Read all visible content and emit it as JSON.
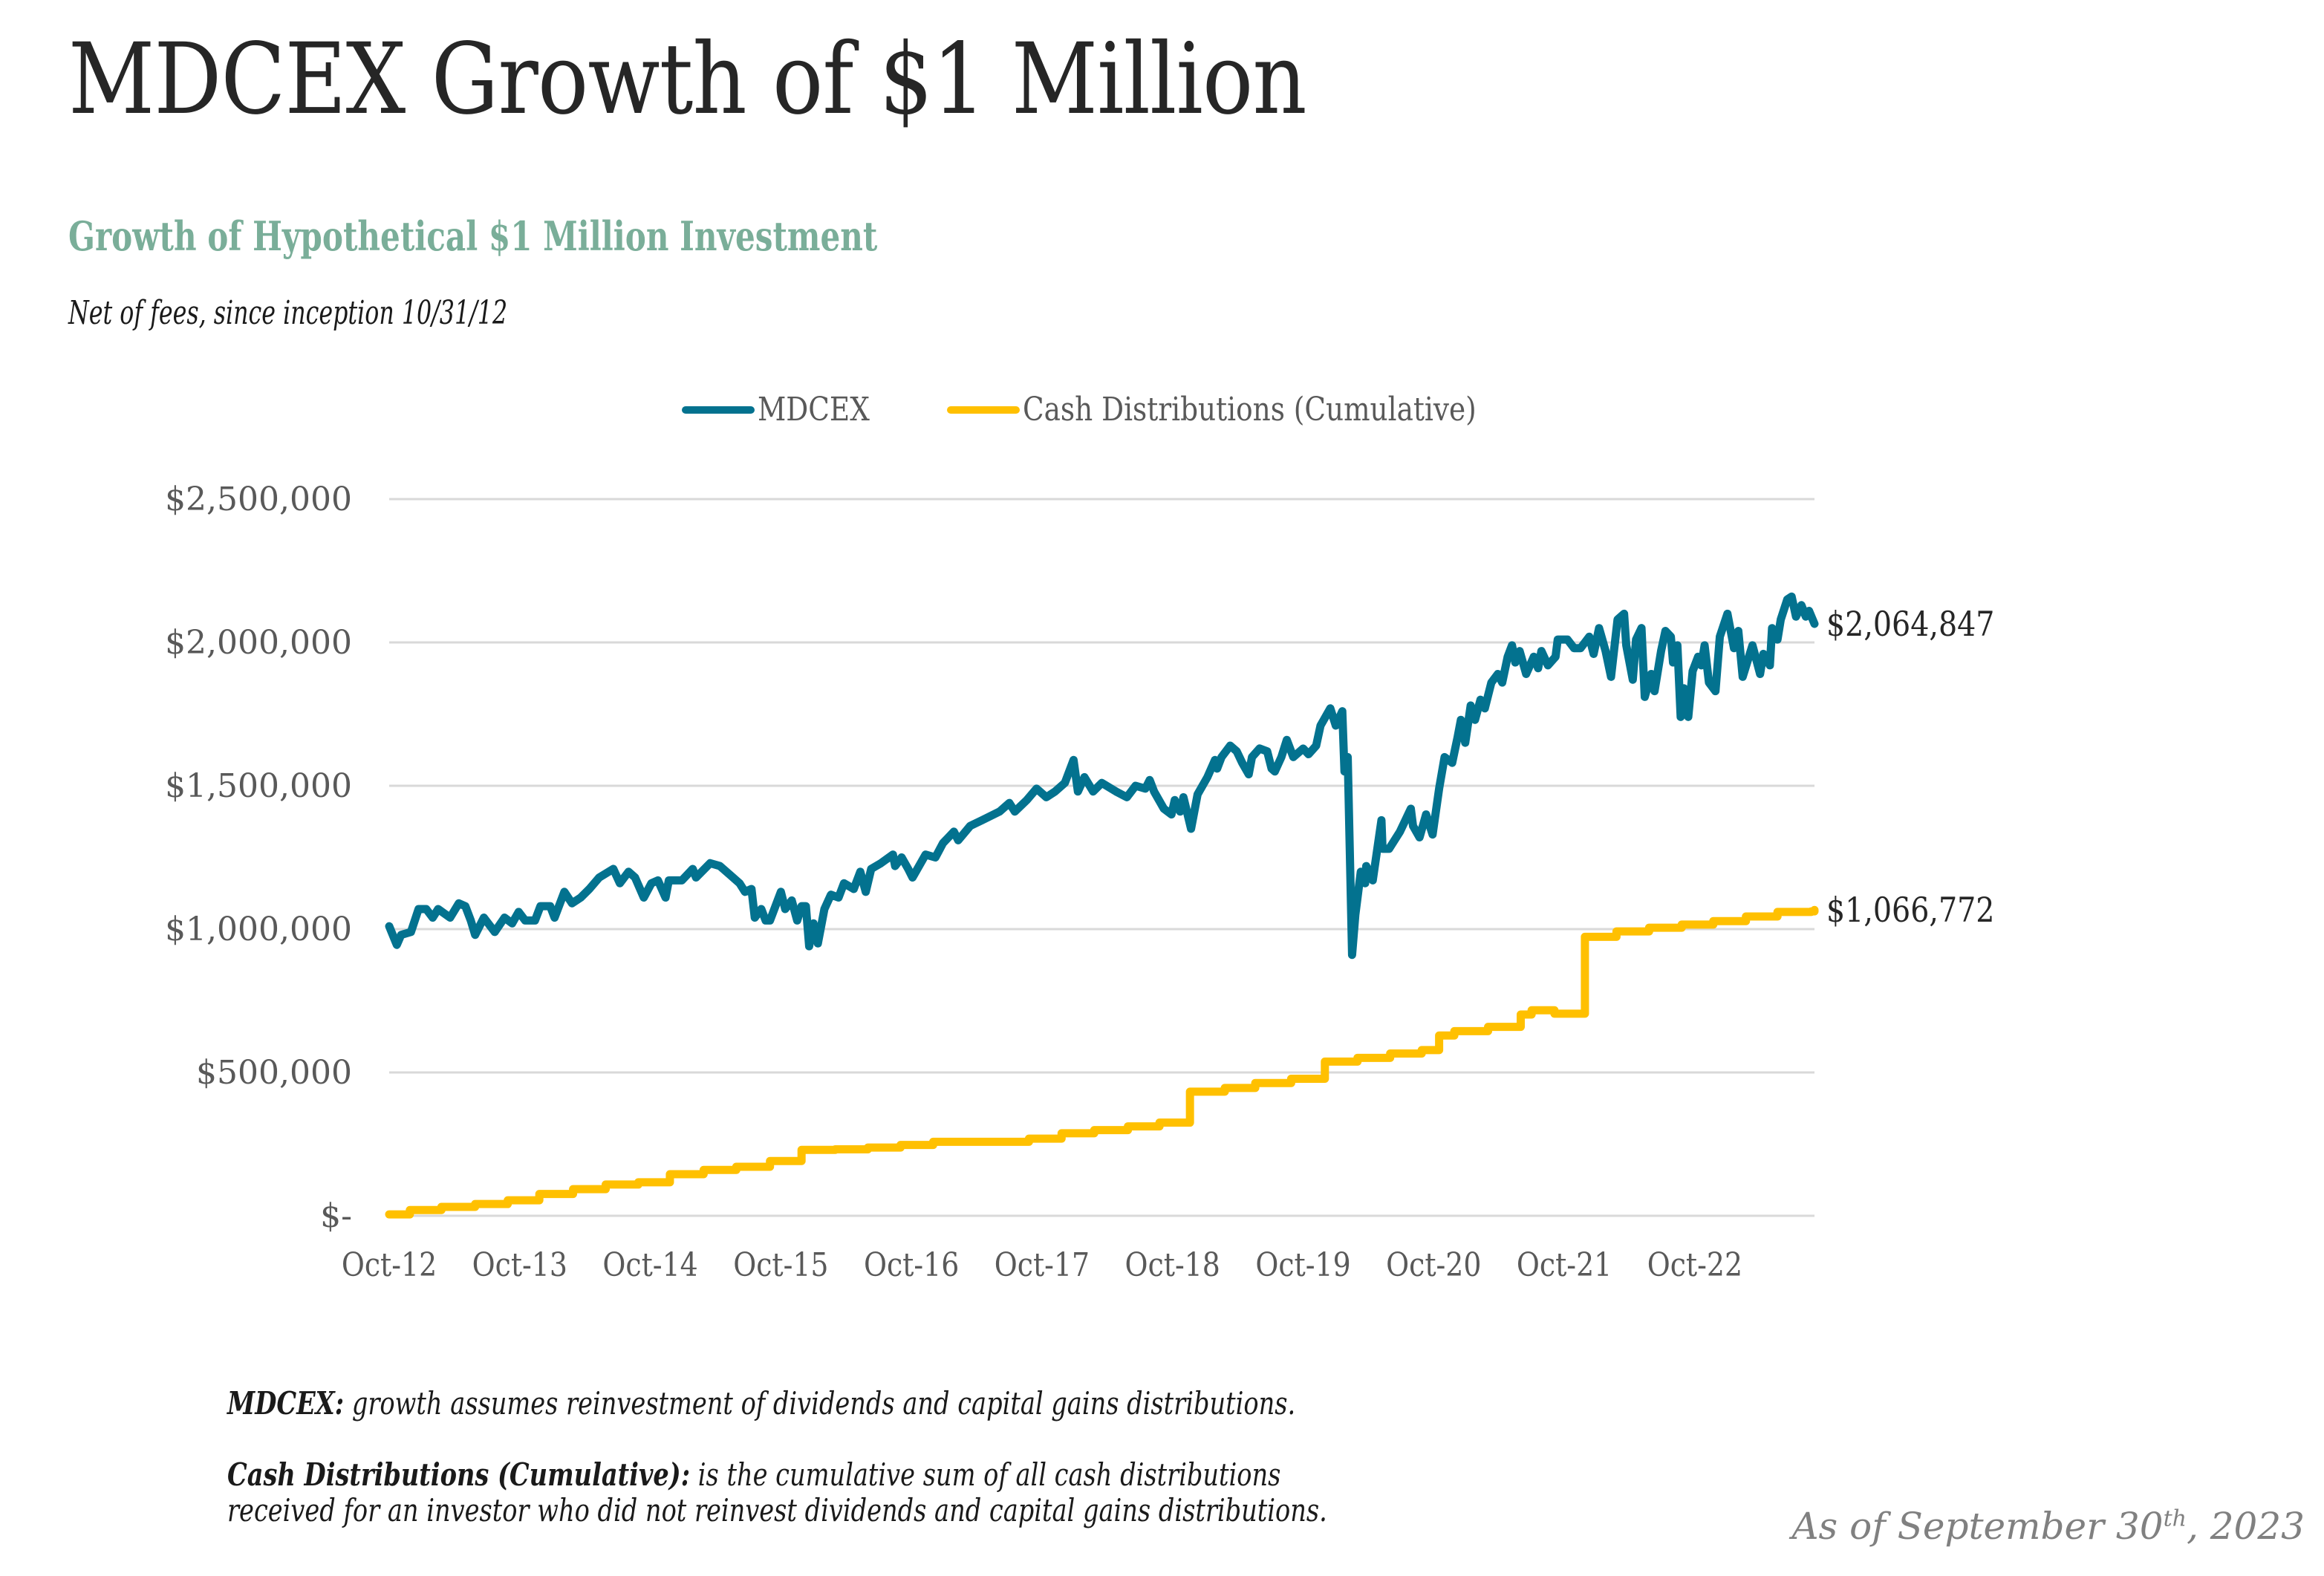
{
  "page": {
    "title": "MDCEX Growth of $1 Million",
    "subtitle": "Growth of Hypothetical $1 Million Investment",
    "note": "Net of fees, since inception 10/31/12",
    "footer": {
      "mdcex_label": "MDCEX:",
      "mdcex_text": " growth assumes reinvestment of dividends and capital gains distributions.",
      "cash_label": "Cash Distributions (Cumulative):",
      "cash_text_line1": " is the cumulative sum of all cash distributions",
      "cash_text_line2": "received for an investor who did not reinvest dividends and capital gains distributions."
    },
    "as_of": {
      "prefix": "As of September 30",
      "suffix": "th",
      "year": ", 2023"
    }
  },
  "colors": {
    "mdcex": "#03728f",
    "cash": "#ffc000",
    "grid": "#d9d9d9",
    "subtitle": "#7aae99",
    "axis_text": "#595959"
  },
  "chart_data": {
    "type": "line",
    "title": "Growth of Hypothetical $1 Million Investment",
    "xlabel": "",
    "ylabel": "",
    "x_unit": "months since Oct-2012",
    "xlim": [
      0,
      131
    ],
    "ylim": [
      0,
      2500000
    ],
    "yticks": [
      0,
      500000,
      1000000,
      1500000,
      2000000,
      2500000
    ],
    "ytick_labels": [
      "$-",
      "$500,000",
      "$1,000,000",
      "$1,500,000",
      "$2,000,000",
      "$2,500,000"
    ],
    "xticks": [
      0,
      12,
      24,
      36,
      48,
      60,
      72,
      84,
      96,
      108,
      120
    ],
    "xtick_labels": [
      "Oct-12",
      "Oct-13",
      "Oct-14",
      "Oct-15",
      "Oct-16",
      "Oct-17",
      "Oct-18",
      "Oct-19",
      "Oct-20",
      "Oct-21",
      "Oct-22"
    ],
    "grid": true,
    "legend_position": "top-center",
    "series": [
      {
        "name": "MDCEX",
        "end_label": "$2,064,847",
        "x": [
          0,
          0.7,
          1.1,
          2,
          2.7,
          3.4,
          4,
          4.5,
          5.6,
          6.4,
          7,
          7.5,
          7.9,
          8.7,
          9.7,
          10.6,
          11.3,
          11.9,
          12.5,
          13.4,
          13.9,
          14.8,
          15.2,
          16.1,
          16.8,
          17.6,
          18.4,
          19.3,
          20.6,
          21.2,
          22,
          22.6,
          23.4,
          24.1,
          24.7,
          25.4,
          25.7,
          26.9,
          27.9,
          28.2,
          29.5,
          30.4,
          31.3,
          32.2,
          32.7,
          33.3,
          33.6,
          34.2,
          34.6,
          35,
          36,
          36.4,
          37,
          37.5,
          37.9,
          38.3,
          38.6,
          39,
          39.4,
          40,
          40.6,
          41.3,
          41.8,
          42.7,
          43.3,
          43.8,
          44.3,
          45.2,
          46.3,
          46.5,
          47.1,
          47.7,
          48.1,
          49.3,
          50.2,
          50.9,
          51.9,
          52.3,
          53.4,
          54.5,
          56.1,
          57,
          57.5,
          58.6,
          59.5,
          60.4,
          61.2,
          62.1,
          62.9,
          63.3,
          63.9,
          64.7,
          65.5,
          66.8,
          67.8,
          68.6,
          69.5,
          69.9,
          70.3,
          71.2,
          71.9,
          72.2,
          72.7,
          73,
          73.7,
          74.3,
          75.2,
          75.9,
          76.1,
          76.5,
          77.3,
          77.9,
          78.4,
          79,
          79.3,
          80,
          80.7,
          81.1,
          81.4,
          82,
          82.5,
          83.1,
          84,
          84.5,
          85.2,
          85.6,
          86.5,
          87,
          87.6,
          87.8,
          88.1,
          88.5,
          88.8,
          89.3,
          89.7,
          89.8,
          90.4,
          91.2,
          91.3,
          91.9,
          92.9,
          93.9,
          94.1,
          94.7,
          95.3,
          95.9,
          96.5,
          97,
          97.7,
          98.2,
          98.5,
          98.9,
          99.4,
          99.8,
          100.3,
          100.7,
          101.3,
          101.9,
          102.3,
          102.8,
          103.2,
          103.5,
          103.9,
          104.5,
          105.2,
          105.6,
          105.9,
          106.5,
          107.2,
          107.4,
          108.3,
          108.9,
          109.5,
          110.3,
          110.7,
          111.2,
          111.8,
          112.3,
          112.9,
          113.5,
          113.7,
          114.3,
          114.6,
          115.1,
          115.4,
          116,
          116.3,
          116.9,
          117.3,
          117.8,
          118,
          118.4,
          118.7,
          119,
          119.4,
          119.8,
          120.3,
          120.6,
          120.9,
          121.3,
          121.9,
          122.3,
          123,
          123.6,
          124,
          124.4,
          125.3,
          126,
          126.3,
          126.9,
          127.1,
          127.6,
          127.9,
          128.5,
          128.9,
          129.3,
          129.8,
          130.2,
          130.5,
          131
        ],
        "values": [
          1010000,
          945000,
          980000,
          990000,
          1070000,
          1070000,
          1040000,
          1070000,
          1040000,
          1090000,
          1080000,
          1030000,
          980000,
          1040000,
          990000,
          1040000,
          1020000,
          1060000,
          1030000,
          1030000,
          1080000,
          1080000,
          1040000,
          1130000,
          1090000,
          1110000,
          1140000,
          1180000,
          1210000,
          1160000,
          1200000,
          1180000,
          1110000,
          1160000,
          1170000,
          1110000,
          1170000,
          1170000,
          1210000,
          1180000,
          1230000,
          1220000,
          1190000,
          1160000,
          1130000,
          1140000,
          1040000,
          1070000,
          1030000,
          1030000,
          1130000,
          1070000,
          1100000,
          1030000,
          1080000,
          1080000,
          940000,
          1020000,
          950000,
          1070000,
          1120000,
          1110000,
          1160000,
          1140000,
          1200000,
          1130000,
          1210000,
          1230000,
          1260000,
          1220000,
          1250000,
          1210000,
          1180000,
          1260000,
          1250000,
          1300000,
          1340000,
          1310000,
          1360000,
          1380000,
          1410000,
          1440000,
          1410000,
          1450000,
          1490000,
          1460000,
          1480000,
          1510000,
          1590000,
          1480000,
          1530000,
          1480000,
          1510000,
          1480000,
          1460000,
          1500000,
          1490000,
          1520000,
          1480000,
          1420000,
          1400000,
          1450000,
          1410000,
          1460000,
          1350000,
          1470000,
          1530000,
          1590000,
          1560000,
          1600000,
          1640000,
          1620000,
          1580000,
          1540000,
          1600000,
          1630000,
          1620000,
          1560000,
          1550000,
          1600000,
          1660000,
          1600000,
          1630000,
          1610000,
          1640000,
          1710000,
          1770000,
          1710000,
          1760000,
          1550000,
          1600000,
          910000,
          1050000,
          1200000,
          1160000,
          1220000,
          1170000,
          1380000,
          1280000,
          1280000,
          1340000,
          1420000,
          1360000,
          1320000,
          1400000,
          1330000,
          1490000,
          1600000,
          1580000,
          1670000,
          1730000,
          1650000,
          1780000,
          1730000,
          1800000,
          1770000,
          1860000,
          1890000,
          1860000,
          1950000,
          1990000,
          1930000,
          1970000,
          1890000,
          1950000,
          1910000,
          1970000,
          1920000,
          1950000,
          2010000,
          2010000,
          1980000,
          1980000,
          2020000,
          1960000,
          2050000,
          1970000,
          1880000,
          2080000,
          2100000,
          1990000,
          1870000,
          2010000,
          2050000,
          1810000,
          1890000,
          1830000,
          1970000,
          2040000,
          2020000,
          1930000,
          1990000,
          1740000,
          1840000,
          1740000,
          1900000,
          1950000,
          1920000,
          1990000,
          1860000,
          1830000,
          2020000,
          2100000,
          1980000,
          2040000,
          1880000,
          1990000,
          1890000,
          1960000,
          1920000,
          2050000,
          2010000,
          2080000,
          2150000,
          2160000,
          2090000,
          2130000,
          2090000,
          2110000,
          2064847
        ]
      },
      {
        "name": "Cash Distributions (Cumulative)",
        "end_label": "$1,066,772",
        "step": true,
        "x": [
          0,
          1.9,
          4.8,
          7.9,
          10.9,
          13.8,
          16.9,
          19.9,
          22.9,
          25.8,
          28.9,
          31.9,
          35,
          37.9,
          41,
          44,
          47,
          50,
          58.8,
          61.8,
          64.8,
          67.9,
          70.8,
          73.6,
          76.8,
          79.6,
          82.9,
          86,
          89,
          92,
          94.9,
          96.5,
          97.9,
          101,
          104,
          105,
          107.1,
          109.9,
          112.8,
          115.8,
          118.8,
          121.7,
          124.7,
          127.6,
          130.7,
          131
        ],
        "values": [
          5000,
          20000,
          31000,
          41000,
          54000,
          76000,
          93000,
          109000,
          117000,
          145000,
          160000,
          171000,
          191000,
          230000,
          232000,
          238000,
          247000,
          258000,
          269000,
          288000,
          299000,
          312000,
          325000,
          433000,
          446000,
          463000,
          478000,
          538000,
          551000,
          566000,
          578000,
          629000,
          644000,
          659000,
          702000,
          717000,
          705000,
          973000,
          992000,
          1005000,
          1016000,
          1028000,
          1044000,
          1060000,
          1062000,
          1066772
        ]
      }
    ]
  }
}
